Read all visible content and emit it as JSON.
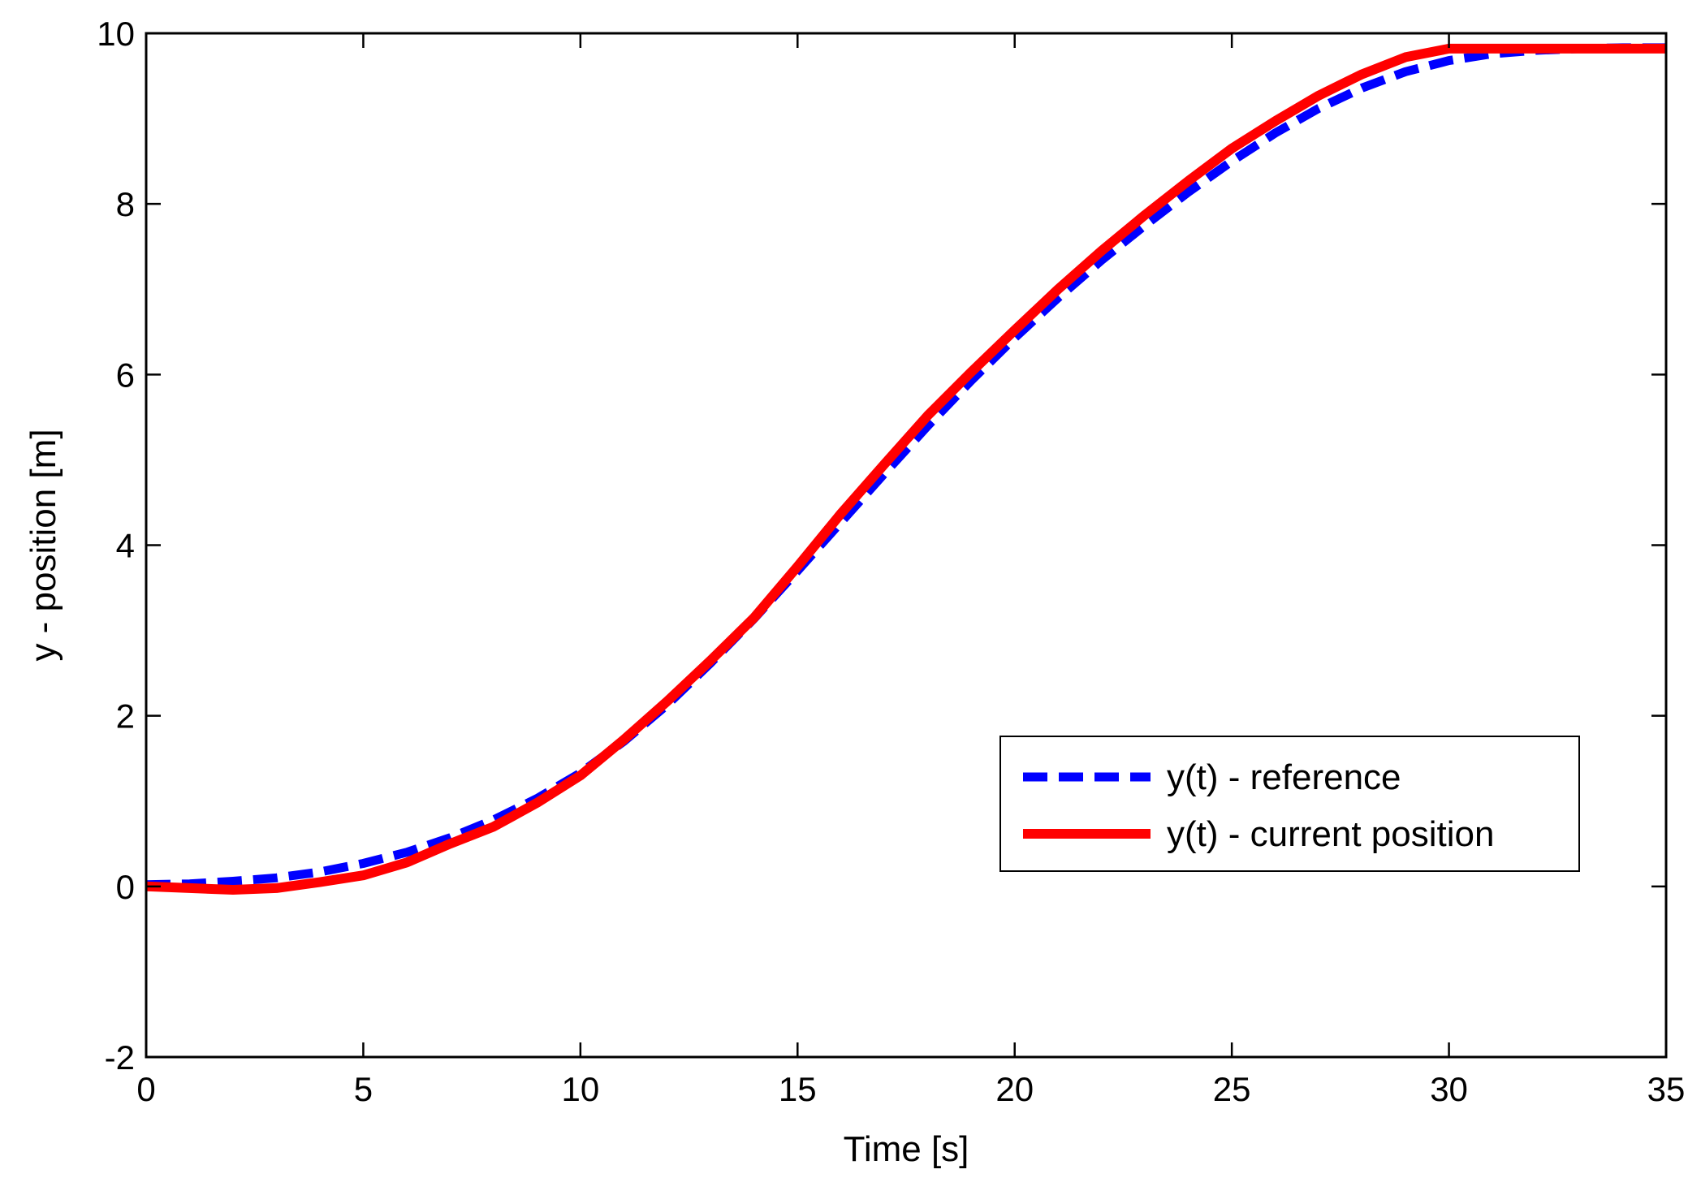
{
  "chart_data": {
    "type": "line",
    "title": "",
    "xlabel": "Time [s]",
    "ylabel": "y - position [m]",
    "xlim": [
      0,
      35
    ],
    "ylim": [
      -2,
      10
    ],
    "xticks": [
      0,
      5,
      10,
      15,
      20,
      25,
      30,
      35
    ],
    "yticks": [
      -2,
      0,
      2,
      4,
      6,
      8,
      10
    ],
    "grid": false,
    "legend_position": "lower-right",
    "series": [
      {
        "name": "y(t) - reference",
        "color": "#0000ff",
        "style": "dashed",
        "x": [
          0,
          1,
          2,
          3,
          4,
          5,
          6,
          7,
          8,
          9,
          10,
          11,
          12,
          13,
          14,
          15,
          16,
          17,
          18,
          19,
          20,
          21,
          22,
          23,
          24,
          25,
          26,
          27,
          28,
          29,
          30,
          31,
          32,
          33,
          34,
          35
        ],
        "values": [
          0.02,
          0.03,
          0.06,
          0.1,
          0.17,
          0.27,
          0.4,
          0.57,
          0.78,
          1.03,
          1.33,
          1.7,
          2.13,
          2.62,
          3.14,
          3.7,
          4.27,
          4.84,
          5.4,
          5.93,
          6.43,
          6.9,
          7.34,
          7.75,
          8.14,
          8.5,
          8.83,
          9.12,
          9.36,
          9.55,
          9.68,
          9.76,
          9.8,
          9.82,
          9.83,
          9.83
        ]
      },
      {
        "name": "y(t) - current position",
        "color": "#ff0000",
        "style": "solid",
        "x": [
          0,
          1,
          2,
          3,
          4,
          5,
          6,
          7,
          8,
          9,
          10,
          11,
          12,
          13,
          14,
          15,
          16,
          17,
          18,
          19,
          20,
          21,
          22,
          23,
          24,
          25,
          26,
          27,
          28,
          29,
          30,
          31,
          32,
          33,
          34,
          35
        ],
        "values": [
          0.0,
          -0.02,
          -0.04,
          -0.02,
          0.05,
          0.13,
          0.28,
          0.5,
          0.7,
          0.98,
          1.3,
          1.72,
          2.17,
          2.65,
          3.15,
          3.75,
          4.37,
          4.95,
          5.52,
          6.03,
          6.52,
          7.0,
          7.45,
          7.87,
          8.27,
          8.65,
          8.97,
          9.27,
          9.52,
          9.72,
          9.82,
          9.82,
          9.82,
          9.82,
          9.82,
          9.82
        ]
      }
    ]
  }
}
